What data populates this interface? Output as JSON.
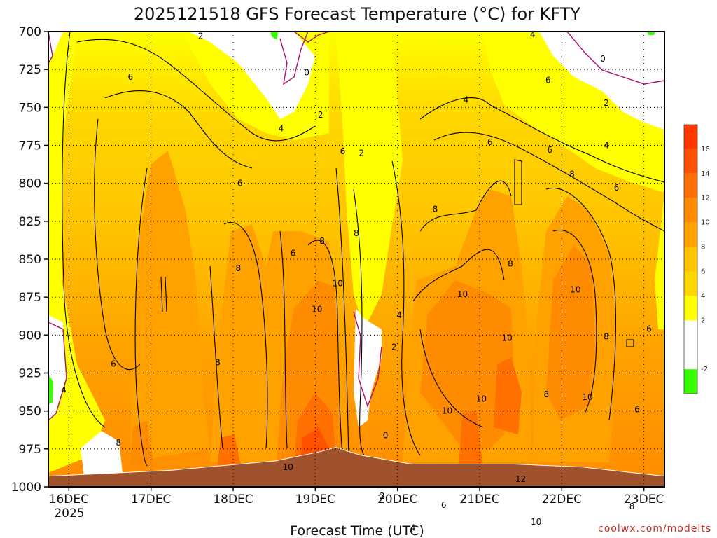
{
  "chart_data": {
    "type": "heatmap",
    "title": "2025121518 GFS Forecast Temperature (°C) for KFTY",
    "xlabel": "Forecast Time (UTC)",
    "ylabel": "",
    "credit": "coolwx.com/modelts",
    "x_ticks": [
      "16DEC",
      "17DEC",
      "18DEC",
      "19DEC",
      "20DEC",
      "21DEC",
      "22DEC",
      "23DEC"
    ],
    "x_year_label": "2025",
    "x_hours": [
      0,
      24,
      48,
      72,
      96,
      120,
      144,
      168
    ],
    "x_range_hours": [
      -6,
      174
    ],
    "y_levels": [
      "700",
      "725",
      "750",
      "775",
      "800",
      "825",
      "850",
      "875",
      "900",
      "925",
      "950",
      "975",
      "1000"
    ],
    "y_range_hpa": [
      700,
      1000
    ],
    "colorbar": {
      "boundaries": [
        -4,
        -2,
        0,
        2,
        4,
        6,
        8,
        10,
        12,
        14,
        16,
        18
      ],
      "colors": [
        "#38ff00",
        "#ffffff",
        "#ffffff",
        "#ffff00",
        "#ffd700",
        "#ffc400",
        "#ffa200",
        "#ff8c00",
        "#ff7000",
        "#ff5200",
        "#ff3800"
      ],
      "tick_labels": [
        "-2",
        "2",
        "4",
        "6",
        "8",
        "10",
        "12",
        "14",
        "16"
      ],
      "tick_values": [
        -2,
        2,
        4,
        6,
        8,
        10,
        12,
        14,
        16
      ]
    },
    "contour_labels": [
      {
        "text": "2",
        "hour": 38.5,
        "hpa": 703
      },
      {
        "text": "0",
        "hour": 69.5,
        "hpa": 727
      },
      {
        "text": "6",
        "hour": 18,
        "hpa": 730
      },
      {
        "text": "2",
        "hour": 73.5,
        "hpa": 755
      },
      {
        "text": "4",
        "hour": 62,
        "hpa": 764
      },
      {
        "text": "4",
        "hour": 135.5,
        "hpa": 702
      },
      {
        "text": "0",
        "hour": 156,
        "hpa": 718
      },
      {
        "text": "6",
        "hour": 140,
        "hpa": 732
      },
      {
        "text": "4",
        "hour": 116,
        "hpa": 745
      },
      {
        "text": "2",
        "hour": 157,
        "hpa": 747
      },
      {
        "text": "6",
        "hour": 123,
        "hpa": 773
      },
      {
        "text": "6",
        "hour": 140.5,
        "hpa": 778
      },
      {
        "text": "4",
        "hour": 157,
        "hpa": 775
      },
      {
        "text": "6",
        "hour": 80,
        "hpa": 779
      },
      {
        "text": "2",
        "hour": 85.5,
        "hpa": 780
      },
      {
        "text": "8",
        "hour": 147,
        "hpa": 794
      },
      {
        "text": "6",
        "hour": 50,
        "hpa": 800
      },
      {
        "text": "6",
        "hour": 160,
        "hpa": 803
      },
      {
        "text": "8",
        "hour": 107,
        "hpa": 817
      },
      {
        "text": "8",
        "hour": 84,
        "hpa": 833
      },
      {
        "text": "8",
        "hour": 74,
        "hpa": 838
      },
      {
        "text": "6",
        "hour": 65.5,
        "hpa": 846
      },
      {
        "text": "8",
        "hour": 49.5,
        "hpa": 856
      },
      {
        "text": "8",
        "hour": 129,
        "hpa": 853
      },
      {
        "text": "10",
        "hour": 78.5,
        "hpa": 866
      },
      {
        "text": "10",
        "hour": 148,
        "hpa": 870
      },
      {
        "text": "10",
        "hour": 115,
        "hpa": 873
      },
      {
        "text": "10",
        "hour": 72.5,
        "hpa": 883
      },
      {
        "text": "4",
        "hour": 96.5,
        "hpa": 887
      },
      {
        "text": "10",
        "hour": 128,
        "hpa": 902
      },
      {
        "text": "8",
        "hour": 157,
        "hpa": 901
      },
      {
        "text": "6",
        "hour": 169.5,
        "hpa": 896
      },
      {
        "text": "2",
        "hour": 95,
        "hpa": 908
      },
      {
        "text": "6",
        "hour": 13,
        "hpa": 919
      },
      {
        "text": "8",
        "hour": 43.5,
        "hpa": 918
      },
      {
        "text": "4",
        "hour": -1.5,
        "hpa": 936
      },
      {
        "text": "10",
        "hour": 120.5,
        "hpa": 942
      },
      {
        "text": "8",
        "hour": 139.5,
        "hpa": 939
      },
      {
        "text": "10",
        "hour": 110.5,
        "hpa": 950
      },
      {
        "text": "10",
        "hour": 151.5,
        "hpa": 941
      },
      {
        "text": "6",
        "hour": 166,
        "hpa": 949
      },
      {
        "text": "0",
        "hour": 92.5,
        "hpa": 966
      },
      {
        "text": "8",
        "hour": 14.5,
        "hpa": 971
      },
      {
        "text": "10",
        "hour": 64,
        "hpa": 987
      },
      {
        "text": "12",
        "hour": 132,
        "hpa": 995
      },
      {
        "text": "2",
        "hour": 91.5,
        "hpa": 1006
      },
      {
        "text": "6",
        "hour": 109.5,
        "hpa": 1012
      },
      {
        "text": "8",
        "hour": 164.5,
        "hpa": 1013
      },
      {
        "text": "4",
        "hour": 100.5,
        "hpa": 1027
      },
      {
        "text": "10",
        "hour": 136.5,
        "hpa": 1023
      }
    ],
    "surface_pressure_hpa_by_hour": [
      [
        -6,
        993
      ],
      [
        30,
        989
      ],
      [
        60,
        983
      ],
      [
        73,
        977
      ],
      [
        78,
        974
      ],
      [
        85,
        979
      ],
      [
        100,
        985
      ],
      [
        130,
        985
      ],
      [
        150,
        987
      ],
      [
        174,
        993
      ]
    ]
  }
}
